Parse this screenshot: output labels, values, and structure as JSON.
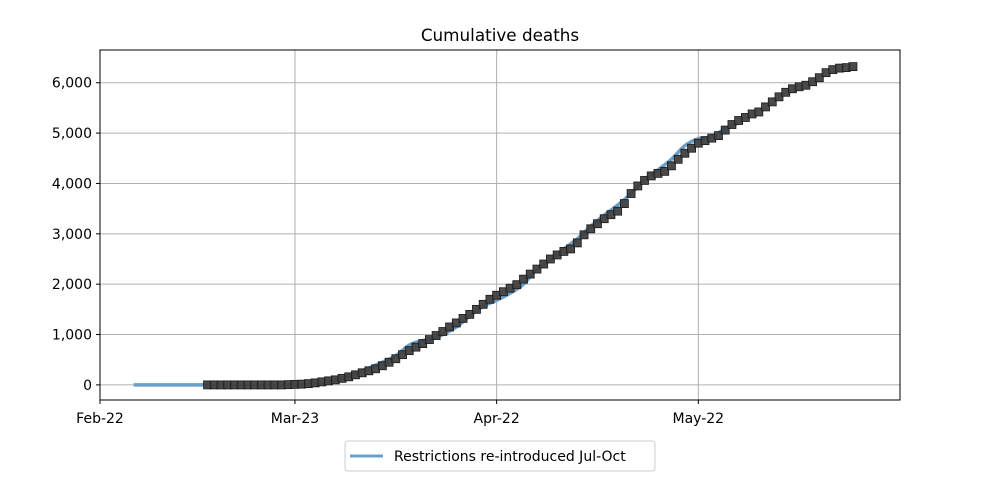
{
  "chart_data": {
    "type": "line",
    "title": "Cumulative deaths",
    "xlabel": "",
    "ylabel": "",
    "x_ticks": [
      "Feb-22",
      "Mar-23",
      "Apr-22",
      "May-22"
    ],
    "y_ticks": [
      "0",
      "1,000",
      "2,000",
      "3,000",
      "4,000",
      "5,000",
      "6,000"
    ],
    "ylim": [
      -300,
      6650
    ],
    "xlim_days": [
      0,
      119
    ],
    "grid": true,
    "legend_position": "bottom-center",
    "series": [
      {
        "name": "Restrictions re-introduced Jul-Oct",
        "style": "line",
        "color": "#6a9fcb",
        "points": [
          [
            5,
            0
          ],
          [
            16,
            0
          ],
          [
            26,
            0
          ],
          [
            30,
            8
          ],
          [
            33,
            40
          ],
          [
            36,
            130
          ],
          [
            39,
            280
          ],
          [
            42,
            450
          ],
          [
            44,
            580
          ],
          [
            46,
            790
          ],
          [
            48,
            880
          ],
          [
            50,
            940
          ],
          [
            53,
            1150
          ],
          [
            55,
            1370
          ],
          [
            57,
            1560
          ],
          [
            59,
            1680
          ],
          [
            61,
            1820
          ],
          [
            63,
            2000
          ],
          [
            65,
            2300
          ],
          [
            67,
            2480
          ],
          [
            69,
            2700
          ],
          [
            71,
            2900
          ],
          [
            73,
            3150
          ],
          [
            75,
            3370
          ],
          [
            77,
            3570
          ],
          [
            79,
            3800
          ],
          [
            81,
            4080
          ],
          [
            83,
            4270
          ],
          [
            85,
            4480
          ],
          [
            87,
            4750
          ],
          [
            89,
            4890
          ],
          [
            91,
            4930
          ],
          [
            93,
            5090
          ],
          [
            95,
            5200
          ]
        ]
      },
      {
        "name": "",
        "style": "markers",
        "color": "#404040",
        "points": [
          [
            16,
            0
          ],
          [
            17,
            0
          ],
          [
            18,
            0
          ],
          [
            19,
            0
          ],
          [
            20,
            0
          ],
          [
            21,
            0
          ],
          [
            22,
            0
          ],
          [
            23,
            0
          ],
          [
            24,
            0
          ],
          [
            25,
            0
          ],
          [
            26,
            0
          ],
          [
            27,
            0
          ],
          [
            28,
            5
          ],
          [
            29,
            10
          ],
          [
            30,
            15
          ],
          [
            31,
            25
          ],
          [
            32,
            40
          ],
          [
            33,
            60
          ],
          [
            34,
            80
          ],
          [
            35,
            100
          ],
          [
            36,
            130
          ],
          [
            37,
            160
          ],
          [
            38,
            200
          ],
          [
            39,
            240
          ],
          [
            40,
            280
          ],
          [
            41,
            320
          ],
          [
            42,
            380
          ],
          [
            43,
            450
          ],
          [
            44,
            520
          ],
          [
            45,
            600
          ],
          [
            46,
            680
          ],
          [
            47,
            750
          ],
          [
            48,
            820
          ],
          [
            49,
            900
          ],
          [
            50,
            980
          ],
          [
            51,
            1060
          ],
          [
            52,
            1150
          ],
          [
            53,
            1230
          ],
          [
            54,
            1320
          ],
          [
            55,
            1400
          ],
          [
            56,
            1500
          ],
          [
            57,
            1600
          ],
          [
            58,
            1700
          ],
          [
            59,
            1780
          ],
          [
            60,
            1850
          ],
          [
            61,
            1920
          ],
          [
            62,
            1990
          ],
          [
            63,
            2100
          ],
          [
            64,
            2200
          ],
          [
            65,
            2300
          ],
          [
            66,
            2400
          ],
          [
            67,
            2500
          ],
          [
            68,
            2580
          ],
          [
            69,
            2650
          ],
          [
            70,
            2700
          ],
          [
            71,
            2820
          ],
          [
            72,
            2980
          ],
          [
            73,
            3100
          ],
          [
            74,
            3200
          ],
          [
            75,
            3300
          ],
          [
            76,
            3380
          ],
          [
            77,
            3450
          ],
          [
            78,
            3600
          ],
          [
            79,
            3800
          ],
          [
            80,
            3950
          ],
          [
            81,
            4060
          ],
          [
            82,
            4150
          ],
          [
            83,
            4200
          ],
          [
            84,
            4240
          ],
          [
            85,
            4350
          ],
          [
            86,
            4480
          ],
          [
            87,
            4600
          ],
          [
            88,
            4700
          ],
          [
            89,
            4800
          ],
          [
            90,
            4850
          ],
          [
            91,
            4900
          ],
          [
            92,
            4950
          ],
          [
            93,
            5060
          ],
          [
            94,
            5170
          ],
          [
            95,
            5250
          ],
          [
            96,
            5310
          ],
          [
            97,
            5380
          ],
          [
            98,
            5420
          ],
          [
            99,
            5520
          ],
          [
            100,
            5620
          ],
          [
            101,
            5720
          ],
          [
            102,
            5810
          ],
          [
            103,
            5880
          ],
          [
            104,
            5920
          ],
          [
            105,
            5950
          ],
          [
            106,
            6020
          ],
          [
            107,
            6100
          ],
          [
            108,
            6200
          ],
          [
            109,
            6260
          ],
          [
            110,
            6290
          ],
          [
            111,
            6300
          ],
          [
            112,
            6320
          ]
        ]
      }
    ],
    "legend": {
      "entries": [
        "Restrictions re-introduced Jul-Oct"
      ]
    }
  }
}
